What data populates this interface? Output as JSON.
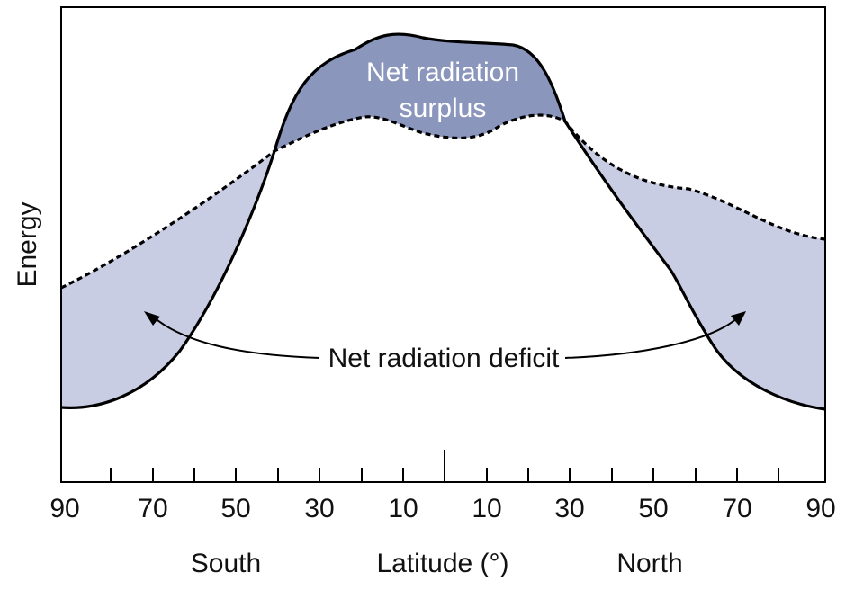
{
  "diagram": {
    "y_axis_label": "Energy",
    "x_axis_label": "Latitude (°)",
    "hemisphere_left": "South",
    "hemisphere_right": "North",
    "x_tick_labels": [
      "90",
      "70",
      "50",
      "30",
      "10",
      "10",
      "30",
      "50",
      "70",
      "90"
    ],
    "surplus_label_line1": "Net radiation",
    "surplus_label_line2": "surplus",
    "deficit_label": "Net radiation deficit",
    "colors": {
      "surplus_fill": "#8b96bd",
      "deficit_fill": "#c9cde3",
      "curve_stroke": "#000000"
    },
    "curves": {
      "incoming_solar_radiation": "solid line",
      "outgoing_radiation": "dashed line"
    }
  }
}
